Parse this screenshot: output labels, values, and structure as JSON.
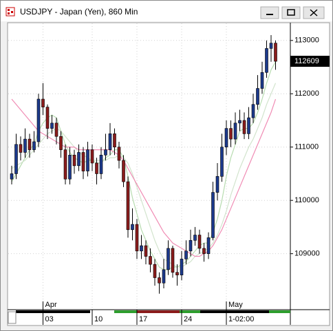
{
  "chart_data": {
    "type": "candlestick",
    "title": "USDJPY - Japan (Yen), 860 Min",
    "categories": [
      null,
      null,
      null,
      null,
      null,
      null,
      null,
      "03",
      null,
      null,
      null,
      null,
      null,
      null,
      null,
      null,
      null,
      null,
      "10",
      null,
      null,
      null,
      null,
      null,
      null,
      null,
      null,
      null,
      "17",
      null,
      null,
      null,
      null,
      null,
      null,
      null,
      null,
      null,
      "24",
      null,
      null,
      null,
      null,
      null,
      null,
      null,
      null,
      null,
      "1-02:00",
      null,
      null,
      null,
      null,
      null,
      null,
      null,
      null,
      null,
      null,
      null
    ],
    "months": [
      null,
      null,
      null,
      null,
      null,
      null,
      null,
      "Apr",
      null,
      null,
      null,
      null,
      null,
      null,
      null,
      null,
      null,
      null,
      null,
      null,
      null,
      null,
      null,
      null,
      null,
      null,
      null,
      null,
      null,
      null,
      null,
      null,
      null,
      null,
      null,
      null,
      null,
      null,
      null,
      null,
      null,
      null,
      null,
      null,
      null,
      null,
      null,
      null,
      "May",
      null,
      null,
      null,
      null,
      null,
      null,
      null,
      null,
      null,
      null,
      null
    ],
    "open": [
      110400,
      110500,
      111050,
      110900,
      111150,
      110950,
      111100,
      111900,
      111750,
      111350,
      111450,
      111200,
      110950,
      110400,
      110850,
      110650,
      110900,
      110550,
      110950,
      110700,
      110500,
      110850,
      110950,
      111250,
      111000,
      110750,
      110350,
      109450,
      109550,
      109050,
      109150,
      108950,
      108800,
      108550,
      108450,
      108700,
      109100,
      108650,
      108600,
      108900,
      109050,
      109250,
      109350,
      109100,
      109000,
      109300,
      110150,
      110450,
      111000,
      111350,
      111150,
      111450,
      111500,
      111250,
      111550,
      111800,
      112100,
      112400,
      112850,
      112950
    ],
    "high": [
      110650,
      111250,
      111200,
      111350,
      111250,
      111300,
      112000,
      112200,
      111800,
      111600,
      111550,
      111300,
      111050,
      111000,
      110950,
      111050,
      111000,
      111100,
      111050,
      110800,
      111000,
      111250,
      111450,
      111350,
      111100,
      110850,
      110450,
      109850,
      109650,
      109350,
      109250,
      109100,
      108900,
      108650,
      108900,
      109250,
      109150,
      108800,
      109050,
      109250,
      109450,
      109500,
      109450,
      109200,
      109400,
      110350,
      110700,
      111250,
      111500,
      111500,
      111650,
      111700,
      111650,
      111750,
      112000,
      112350,
      112600,
      113000,
      113100,
      113000
    ],
    "low": [
      110300,
      110400,
      110750,
      110800,
      110800,
      110900,
      111000,
      111600,
      111150,
      111250,
      111050,
      110800,
      110300,
      110300,
      110500,
      110550,
      110400,
      110450,
      110550,
      110300,
      110400,
      110750,
      110850,
      110850,
      110600,
      110250,
      109300,
      109250,
      108900,
      108900,
      108800,
      108650,
      108400,
      108250,
      108350,
      108600,
      108550,
      108400,
      108500,
      108800,
      108950,
      109150,
      109000,
      108850,
      108900,
      109250,
      110000,
      110350,
      110850,
      111000,
      111050,
      111300,
      111150,
      111150,
      111450,
      111700,
      112000,
      112300,
      112600,
      112450
    ],
    "close": [
      110500,
      111050,
      110900,
      111150,
      110950,
      111100,
      111900,
      111750,
      111350,
      111450,
      111200,
      110950,
      110400,
      110850,
      110650,
      110900,
      110550,
      110950,
      110700,
      110500,
      110850,
      110950,
      111250,
      111000,
      110750,
      110350,
      109450,
      109550,
      109050,
      109150,
      108950,
      108800,
      108550,
      108450,
      108700,
      109100,
      108650,
      108600,
      108900,
      109050,
      109250,
      109350,
      109100,
      109000,
      109300,
      110150,
      110450,
      111000,
      111350,
      111150,
      111450,
      111500,
      111250,
      111550,
      111800,
      112100,
      112400,
      112850,
      112950,
      112609
    ],
    "up_color": "#1c3a8c",
    "down_color": "#8b1c1c",
    "lines": [
      {
        "color": "#b7dcb0",
        "values": [
          110350,
          110500,
          110650,
          110800,
          110950,
          111050,
          111300,
          111450,
          111550,
          111600,
          111550,
          111300,
          111050,
          110900,
          110800,
          110750,
          110700,
          110750,
          110750,
          110700,
          110700,
          110800,
          110850,
          110950,
          110950,
          110800,
          110450,
          110050,
          109750,
          109450,
          109250,
          109050,
          108900,
          108750,
          108700,
          108700,
          108750,
          108750,
          108800,
          108850,
          108950,
          109050,
          109150,
          109200,
          109200,
          109400,
          109650,
          110000,
          110450,
          110800,
          111050,
          111300,
          111350,
          111350,
          111450,
          111650,
          111900,
          112200,
          112450,
          112600
        ]
      },
      {
        "color": "#d2e4cd",
        "values": [
          110600,
          110650,
          110700,
          110750,
          110850,
          110950,
          111050,
          111150,
          111250,
          111300,
          111350,
          111300,
          111200,
          111100,
          111000,
          110900,
          110850,
          110800,
          110750,
          110750,
          110750,
          110750,
          110800,
          110800,
          110850,
          110800,
          110700,
          110500,
          110250,
          110000,
          109750,
          109500,
          109250,
          109050,
          108900,
          108850,
          108800,
          108750,
          108750,
          108800,
          108850,
          108950,
          109000,
          109050,
          109100,
          109200,
          109350,
          109550,
          109800,
          110100,
          110350,
          110600,
          110800,
          111000,
          111150,
          111350,
          111550,
          111800,
          112000,
          112200
        ]
      },
      {
        "color": "#f08cb4",
        "values": [
          111900,
          111800,
          111700,
          111600,
          111500,
          111400,
          111300,
          111250,
          111200,
          111150,
          111100,
          111050,
          111000,
          111000,
          111000,
          110950,
          110950,
          110950,
          110950,
          110950,
          110950,
          110950,
          110950,
          110900,
          110850,
          110750,
          110600,
          110450,
          110300,
          110150,
          110000,
          109850,
          109700,
          109550,
          109400,
          109300,
          109200,
          109150,
          109100,
          109050,
          109000,
          108950,
          108950,
          109000,
          109050,
          109150,
          109300,
          109450,
          109650,
          109850,
          110050,
          110250,
          110450,
          110650,
          110850,
          111050,
          111250,
          111450,
          111650,
          111900
        ]
      }
    ],
    "last_price": 112609,
    "ylim": [
      107950,
      113320
    ],
    "yticks": [
      113000,
      112000,
      111000,
      110000,
      109000
    ],
    "grid": true
  }
}
